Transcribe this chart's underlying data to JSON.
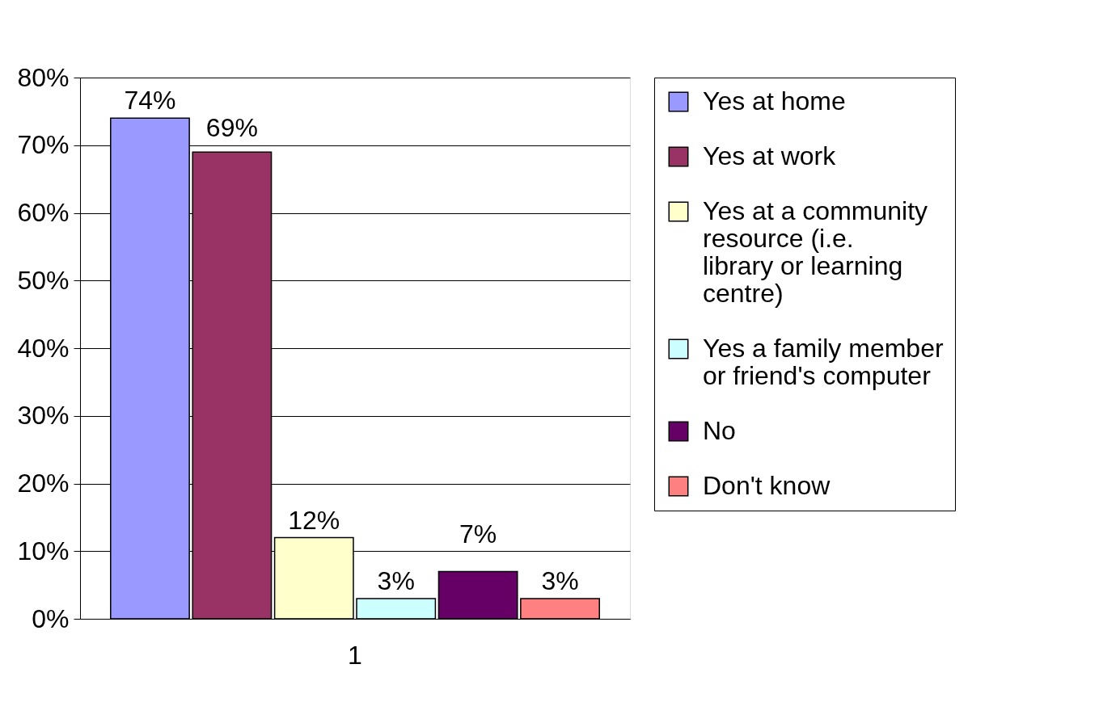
{
  "chart_data": {
    "type": "bar",
    "categories": [
      "1"
    ],
    "series": [
      {
        "name": "Yes at home",
        "color": "#9999ff",
        "values": [
          74
        ],
        "value_labels": [
          "74%"
        ]
      },
      {
        "name": "Yes at work",
        "color": "#993366",
        "values": [
          69
        ],
        "value_labels": [
          "69%"
        ]
      },
      {
        "name": "Yes at a community resource (i.e. library or learning centre)",
        "color": "#ffffcc",
        "values": [
          12
        ],
        "value_labels": [
          "12%"
        ]
      },
      {
        "name": "Yes a family member or friend's computer",
        "color": "#ccffff",
        "values": [
          3
        ],
        "value_labels": [
          "3%"
        ]
      },
      {
        "name": "No",
        "color": "#660066",
        "values": [
          7
        ],
        "value_labels": [
          "7%"
        ]
      },
      {
        "name": "Don't know",
        "color": "#ff8080",
        "values": [
          3
        ],
        "value_labels": [
          "3%"
        ]
      }
    ],
    "ylim": [
      0,
      80
    ],
    "yticks": [
      {
        "value": 0,
        "label": "0%"
      },
      {
        "value": 10,
        "label": "10%"
      },
      {
        "value": 20,
        "label": "20%"
      },
      {
        "value": 30,
        "label": "30%"
      },
      {
        "value": 40,
        "label": "40%"
      },
      {
        "value": 50,
        "label": "50%"
      },
      {
        "value": 60,
        "label": "60%"
      },
      {
        "value": 70,
        "label": "70%"
      },
      {
        "value": 80,
        "label": "80%"
      }
    ],
    "grid": "y",
    "legend": "right"
  }
}
